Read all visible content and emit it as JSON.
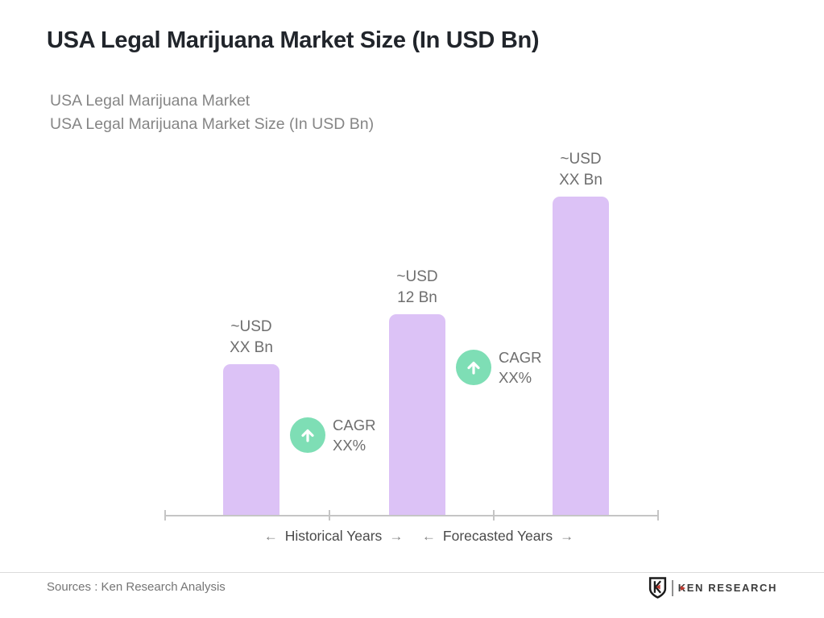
{
  "page": {
    "title": "USA Legal Marijuana Market Size (In USD Bn)",
    "background_color": "#ffffff"
  },
  "chart_data": {
    "type": "bar",
    "title": "USA Legal Marijuana Market",
    "subtitle": "USA Legal Marijuana Market Size (In USD Bn)",
    "unit": "USD Bn",
    "grid": false,
    "legend": false,
    "ylim_est": [
      0,
      20
    ],
    "bars": [
      {
        "label": "~USD XX Bn",
        "label_line1": "~USD",
        "label_line2": "XX Bn",
        "value_text": "XX",
        "value_est_usd_bn": 9,
        "period": "Historical Years"
      },
      {
        "label": "~USD 12 Bn",
        "label_line1": "~USD",
        "label_line2": "12 Bn",
        "value_text": "12",
        "value_est_usd_bn": 12,
        "period": "Historical Years"
      },
      {
        "label": "~USD XX Bn",
        "label_line1": "~USD",
        "label_line2": "XX Bn",
        "value_text": "XX",
        "value_est_usd_bn": 19,
        "period": "Forecasted Years"
      }
    ],
    "annotations": [
      {
        "label_line1": "CAGR",
        "label_line2": "XX%",
        "icon": "up-arrow-circle-icon",
        "between_bars": [
          0,
          1
        ]
      },
      {
        "label_line1": "CAGR",
        "label_line2": "XX%",
        "icon": "up-arrow-circle-icon",
        "between_bars": [
          1,
          2
        ]
      }
    ],
    "x_axis_segments": [
      "Historical Years",
      "Forecasted Years"
    ],
    "colors": {
      "bar": "#dcc2f6",
      "cagr_circle": "#7edeb5",
      "axis": "#c5c5c5",
      "title": "#21252b",
      "subtitle_text": "#858585",
      "label_text": "#6e6e6e",
      "logo_red": "#bf3a30"
    }
  },
  "glyphs": {
    "left_arrow": "←",
    "right_arrow": "→"
  },
  "footer": {
    "sources": "Sources : Ken Research Analysis",
    "logo_text": "KEN RESEARCH",
    "logo_shield_letter": "K"
  }
}
